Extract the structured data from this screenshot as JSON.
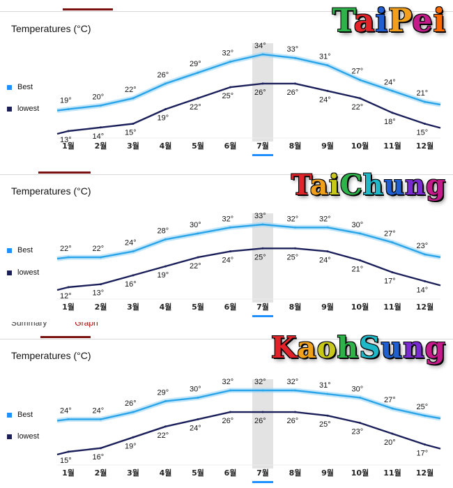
{
  "panels": [
    {
      "city": "TaiPei",
      "chart_title": "Temperatures (°C)",
      "legend": {
        "best": "Best",
        "lowest": "lowest"
      },
      "colors": {
        "best": "#2aa4e8",
        "lowest": "#1a1f5a",
        "highlight": "#e3e3e3",
        "accent": "#1e90ff"
      },
      "city_colors": [
        "#2db34a",
        "#e2232a",
        "#1f5fd1",
        "#f0a01a",
        "#c41a8a",
        "#ff6a00"
      ],
      "chart_data": {
        "type": "line",
        "categories": [
          "1월",
          "2월",
          "3월",
          "4월",
          "5월",
          "6월",
          "7월",
          "8월",
          "9월",
          "10월",
          "11월",
          "12월"
        ],
        "series": [
          {
            "name": "Best",
            "values": [
              19,
              20,
              22,
              26,
              29,
              32,
              34,
              33,
              31,
              27,
              24,
              21
            ]
          },
          {
            "name": "lowest",
            "values": [
              13,
              14,
              15,
              19,
              22,
              25,
              26,
              26,
              24,
              22,
              18,
              15
            ]
          }
        ],
        "data_labels": {
          "Best": [
            "19°",
            "20°",
            "22°",
            "26°",
            "29°",
            "32°",
            "34°",
            "33°",
            "31°",
            "27°",
            "24°",
            "21°"
          ],
          "lowest": [
            "13°",
            "14°",
            "15°",
            "19°",
            "22°",
            "25°",
            "26°",
            "26°",
            "24°",
            "22°",
            "18°",
            "15°"
          ]
        },
        "highlighted_category": "7월",
        "title": "Temperatures (°C)",
        "xlabel": "",
        "ylabel": ""
      }
    },
    {
      "city": "TaiChung",
      "chart_title": "Temperatures (°C)",
      "legend": {
        "best": "Best",
        "lowest": "lowest"
      },
      "colors": {
        "best": "#2aa4e8",
        "lowest": "#1a1f5a",
        "highlight": "#e3e3e3",
        "accent": "#1e90ff"
      },
      "city_colors": [
        "#e2232a",
        "#f0a01a",
        "#c8c81a",
        "#2db34a",
        "#1fb8c8",
        "#1f5fd1",
        "#7a2ad1",
        "#c41a8a"
      ],
      "chart_data": {
        "type": "line",
        "categories": [
          "1월",
          "2월",
          "3월",
          "4월",
          "5월",
          "6월",
          "7월",
          "8월",
          "9월",
          "10월",
          "11월",
          "12월"
        ],
        "series": [
          {
            "name": "Best",
            "values": [
              22,
              22,
              24,
              28,
              30,
              32,
              33,
              32,
              32,
              30,
              27,
              23
            ]
          },
          {
            "name": "lowest",
            "values": [
              12,
              13,
              16,
              19,
              22,
              24,
              25,
              25,
              24,
              21,
              17,
              14
            ]
          }
        ],
        "data_labels": {
          "Best": [
            "22°",
            "22°",
            "24°",
            "28°",
            "30°",
            "32°",
            "33°",
            "32°",
            "32°",
            "30°",
            "27°",
            "23°"
          ],
          "lowest": [
            "12°",
            "13°",
            "16°",
            "19°",
            "22°",
            "24°",
            "25°",
            "25°",
            "24°",
            "21°",
            "17°",
            "14°"
          ]
        },
        "highlighted_category": "7월",
        "title": "Temperatures (°C)",
        "xlabel": "",
        "ylabel": ""
      }
    },
    {
      "city": "KaohSung",
      "chart_title": "Temperatures (°C)",
      "legend": {
        "best": "Best",
        "lowest": "lowest"
      },
      "colors": {
        "best": "#2aa4e8",
        "lowest": "#1a1f5a",
        "highlight": "#e3e3e3",
        "accent": "#1e90ff"
      },
      "city_colors": [
        "#e2232a",
        "#f0a01a",
        "#c8c81a",
        "#2db34a",
        "#1fb8c8",
        "#1f5fd1",
        "#7a2ad1",
        "#c41a8a"
      ],
      "tabs_partial": {
        "summary": "Summary",
        "graph": "Graph"
      },
      "chart_data": {
        "type": "line",
        "categories": [
          "1월",
          "2월",
          "3월",
          "4월",
          "5월",
          "6월",
          "7월",
          "8월",
          "9월",
          "10월",
          "11월",
          "12월"
        ],
        "series": [
          {
            "name": "Best",
            "values": [
              24,
              24,
              26,
              29,
              30,
              32,
              32,
              32,
              31,
              30,
              27,
              25
            ]
          },
          {
            "name": "lowest",
            "values": [
              15,
              16,
              19,
              22,
              24,
              26,
              26,
              26,
              25,
              23,
              20,
              17
            ]
          }
        ],
        "data_labels": {
          "Best": [
            "24°",
            "24°",
            "26°",
            "29°",
            "30°",
            "32°",
            "32°",
            "32°",
            "31°",
            "30°",
            "27°",
            "25°"
          ],
          "lowest": [
            "15°",
            "16°",
            "19°",
            "22°",
            "24°",
            "26°",
            "26°",
            "26°",
            "25°",
            "23°",
            "20°",
            "17°"
          ]
        },
        "highlighted_category": "7월",
        "title": "Temperatures (°C)",
        "xlabel": "",
        "ylabel": ""
      }
    }
  ]
}
